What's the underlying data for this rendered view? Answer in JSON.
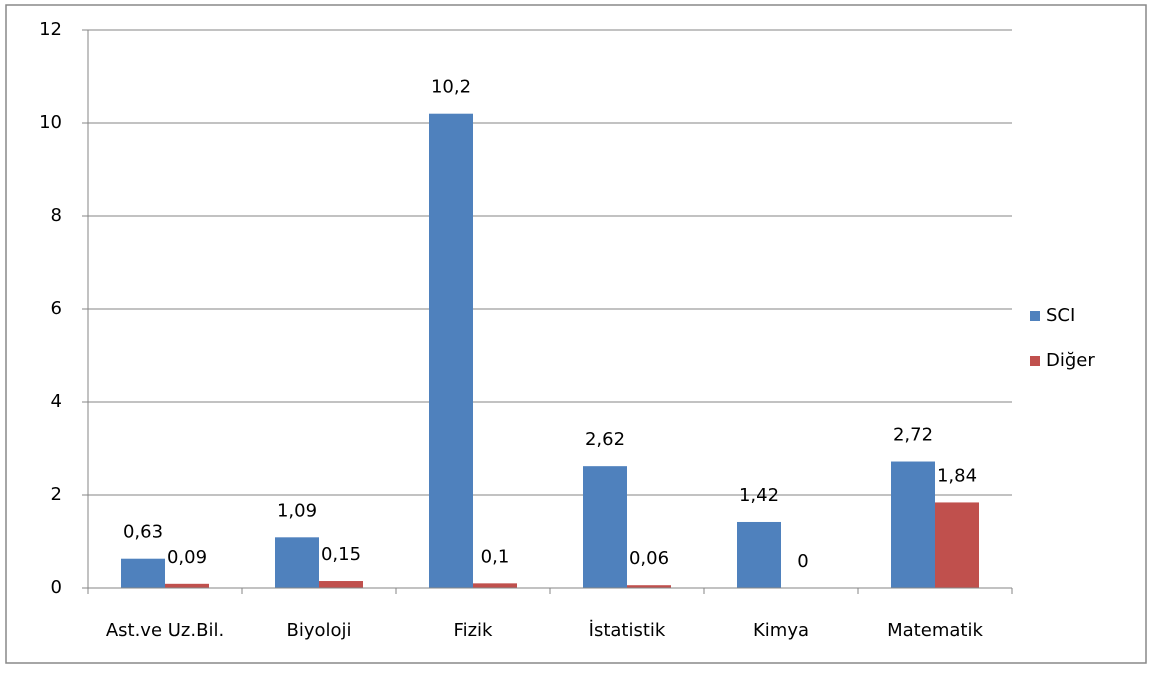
{
  "chart_data": {
    "type": "bar",
    "categories": [
      "Ast.ve Uz.Bil.",
      "Biyoloji",
      "Fizik",
      "İstatistik",
      "Kimya",
      "Matematik"
    ],
    "series": [
      {
        "name": "SCI",
        "color": "#4f81bd",
        "values": [
          0.63,
          1.09,
          10.2,
          2.62,
          1.42,
          2.72
        ],
        "value_labels": [
          "0,63",
          "1,09",
          "10,2",
          "2,62",
          "1,42",
          "2,72"
        ]
      },
      {
        "name": "Diğer",
        "color": "#c0504d",
        "values": [
          0.09,
          0.15,
          0.1,
          0.06,
          0,
          1.84
        ],
        "value_labels": [
          "0,09",
          "0,15",
          "0,1",
          "0,06",
          "0",
          "1,84"
        ]
      }
    ],
    "ylim": [
      0,
      12
    ],
    "yticks": [
      0,
      2,
      4,
      6,
      8,
      10,
      12
    ],
    "grid": true,
    "legend": "right"
  }
}
